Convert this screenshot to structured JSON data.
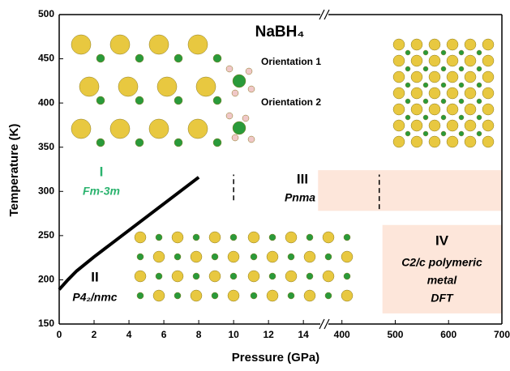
{
  "chart_data": {
    "type": "phase-diagram",
    "title": "NaBH₄",
    "x_label": "Pressure (GPa)",
    "y_label": "Temperature (K)",
    "x_segments": [
      {
        "xlim": [
          0,
          15.2
        ],
        "xticks": [
          0,
          2,
          4,
          6,
          8,
          10,
          12,
          14
        ]
      },
      {
        "xlim": [
          367,
          700
        ],
        "xticks": [
          400,
          500,
          600,
          700
        ]
      }
    ],
    "ylim": [
      150,
      500
    ],
    "yticks": [
      150,
      200,
      250,
      300,
      350,
      400,
      450,
      500
    ],
    "series": [
      {
        "color": "#000000",
        "x": [
          0,
          0.5,
          1,
          2,
          3,
          4,
          5,
          6,
          7,
          8
        ],
        "values": [
          189,
          200,
          210,
          226,
          241,
          256,
          271,
          286,
          301,
          316
        ]
      }
    ],
    "boundaries": [
      {
        "x": [
          10,
          10
        ],
        "y": [
          290,
          319
        ]
      },
      {
        "x": [
          470,
          470
        ],
        "y": [
          280,
          319
        ]
      }
    ],
    "regions": [
      {
        "x": [
          14.84,
          700
        ],
        "y": [
          278,
          324
        ],
        "color": "#fde6da"
      },
      {
        "x": [
          476,
          700
        ],
        "y": [
          162,
          262
        ],
        "color": "#fde6da"
      }
    ],
    "phases": [
      {
        "numeral": "I",
        "group": "Fm-3m"
      },
      {
        "numeral": "II",
        "group": "P4₂/nmc"
      },
      {
        "numeral": "III",
        "group": "Pnma"
      },
      {
        "numeral": "IV",
        "group": "C2/c polymeric",
        "notes": [
          "metal",
          "DFT"
        ]
      }
    ],
    "orientations": [
      "Orientation 1",
      "Orientation 2"
    ]
  }
}
